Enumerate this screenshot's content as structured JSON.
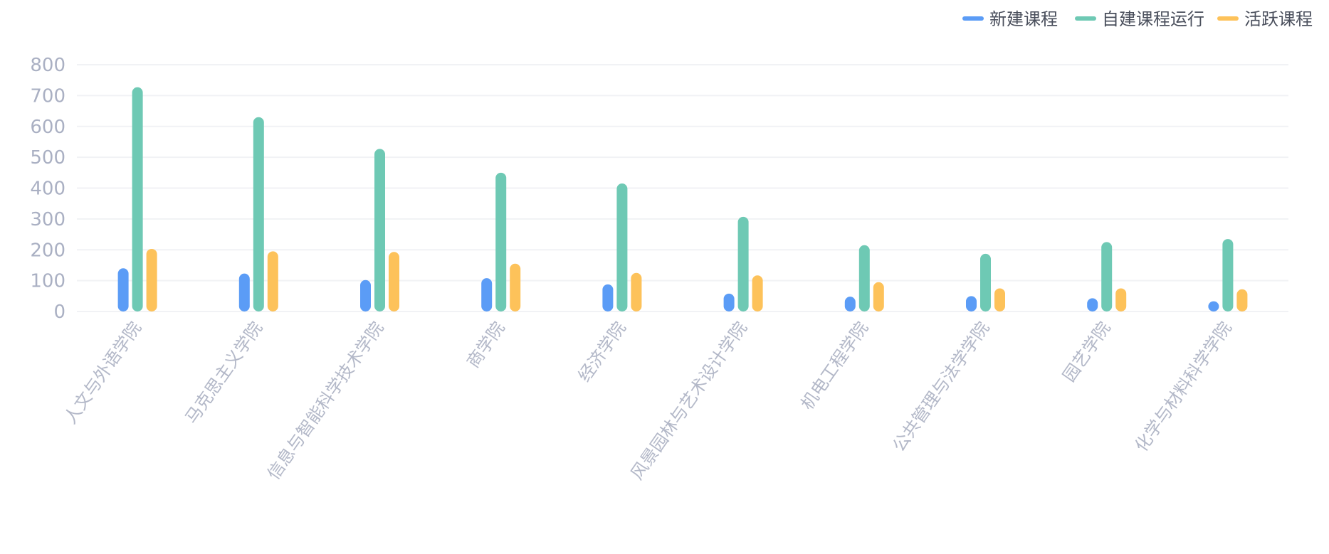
{
  "chart_data": {
    "type": "bar",
    "categories": [
      "人文与外语学院",
      "马克思主义学院",
      "信息与智能科学技术学院",
      "商学院",
      "经济学院",
      "风景园林与艺术设计学院",
      "机电工程学院",
      "公共管理与法学学院",
      "园艺学院",
      "化学与材料科学学院"
    ],
    "series": [
      {
        "name": "新建课程",
        "color": "#5b9cf6",
        "values": [
          140,
          123,
          102,
          108,
          88,
          58,
          48,
          50,
          43,
          33
        ]
      },
      {
        "name": "自建课程运行",
        "color": "#6ec9b4",
        "values": [
          727,
          630,
          527,
          450,
          415,
          307,
          215,
          187,
          225,
          235
        ]
      },
      {
        "name": "活跃课程",
        "color": "#fdc25a",
        "values": [
          203,
          195,
          193,
          155,
          125,
          117,
          95,
          75,
          75,
          72
        ]
      }
    ],
    "yticks": [
      0,
      100,
      200,
      300,
      400,
      500,
      600,
      700,
      800
    ],
    "ylim": [
      0,
      800
    ],
    "grid": true,
    "legend_position": "top-right"
  }
}
